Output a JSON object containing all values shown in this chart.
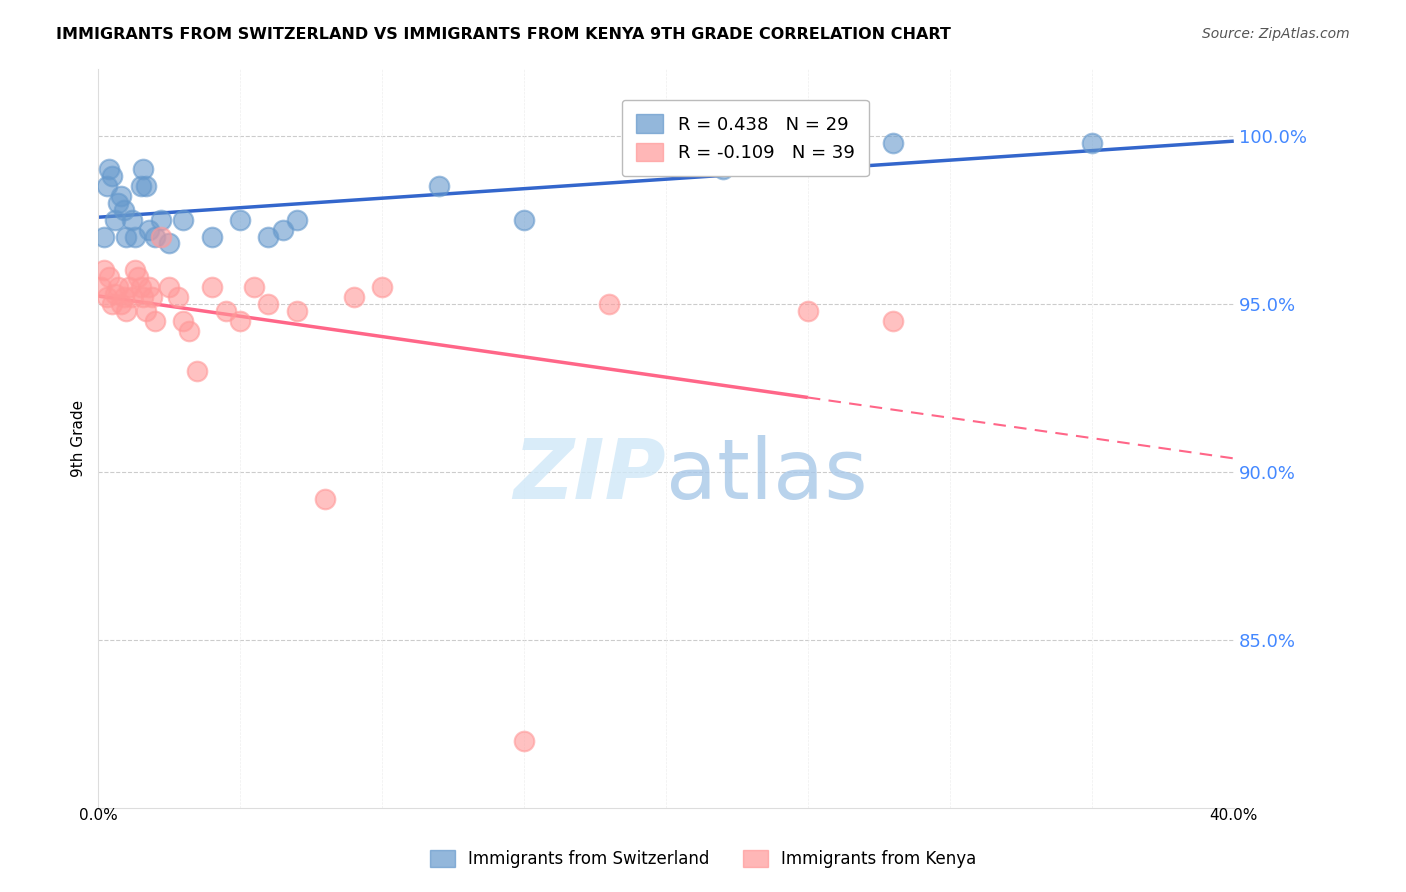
{
  "title": "IMMIGRANTS FROM SWITZERLAND VS IMMIGRANTS FROM KENYA 9TH GRADE CORRELATION CHART",
  "source": "Source: ZipAtlas.com",
  "ylabel": "9th Grade",
  "r_switzerland": 0.438,
  "n_switzerland": 29,
  "r_kenya": -0.109,
  "n_kenya": 39,
  "color_switzerland": "#6699CC",
  "color_kenya": "#FF9999",
  "color_trendline_switzerland": "#3366CC",
  "color_trendline_kenya": "#FF6688",
  "ytick_labels": [
    "100.0%",
    "95.0%",
    "90.0%",
    "85.0%"
  ],
  "ytick_values": [
    1.0,
    0.95,
    0.9,
    0.85
  ],
  "xlim": [
    0.0,
    0.4
  ],
  "ylim": [
    0.8,
    1.02
  ],
  "switzerland_x": [
    0.002,
    0.003,
    0.004,
    0.005,
    0.006,
    0.007,
    0.008,
    0.009,
    0.01,
    0.012,
    0.013,
    0.015,
    0.016,
    0.017,
    0.018,
    0.02,
    0.022,
    0.025,
    0.03,
    0.04,
    0.05,
    0.06,
    0.065,
    0.07,
    0.12,
    0.15,
    0.22,
    0.28,
    0.35
  ],
  "switzerland_y": [
    0.97,
    0.985,
    0.99,
    0.988,
    0.975,
    0.98,
    0.982,
    0.978,
    0.97,
    0.975,
    0.97,
    0.985,
    0.99,
    0.985,
    0.972,
    0.97,
    0.975,
    0.968,
    0.975,
    0.97,
    0.975,
    0.97,
    0.972,
    0.975,
    0.985,
    0.975,
    0.99,
    0.998,
    0.998
  ],
  "kenya_x": [
    0.001,
    0.002,
    0.003,
    0.004,
    0.005,
    0.006,
    0.007,
    0.008,
    0.009,
    0.01,
    0.011,
    0.012,
    0.013,
    0.014,
    0.015,
    0.016,
    0.017,
    0.018,
    0.019,
    0.02,
    0.022,
    0.025,
    0.028,
    0.03,
    0.032,
    0.035,
    0.04,
    0.045,
    0.05,
    0.055,
    0.06,
    0.07,
    0.08,
    0.09,
    0.1,
    0.15,
    0.18,
    0.25,
    0.28
  ],
  "kenya_y": [
    0.955,
    0.96,
    0.952,
    0.958,
    0.95,
    0.953,
    0.955,
    0.95,
    0.952,
    0.948,
    0.955,
    0.952,
    0.96,
    0.958,
    0.955,
    0.952,
    0.948,
    0.955,
    0.952,
    0.945,
    0.97,
    0.955,
    0.952,
    0.945,
    0.942,
    0.93,
    0.955,
    0.948,
    0.945,
    0.955,
    0.95,
    0.948,
    0.892,
    0.952,
    0.955,
    0.82,
    0.95,
    0.948,
    0.945
  ]
}
